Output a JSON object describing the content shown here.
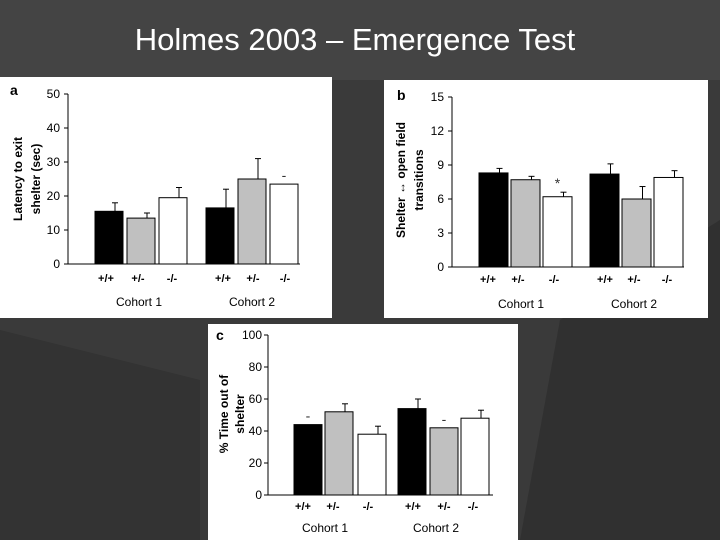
{
  "slide": {
    "title": "Holmes 2003 – Emergence Test"
  },
  "colors": {
    "background": "#3a3a3a",
    "panel": "#ffffff",
    "wt": "#000000",
    "het": "#c0c0c0",
    "ko": "#ffffff"
  },
  "chart_data": [
    {
      "panel_label": "a",
      "type": "bar",
      "ylabel_lines": [
        "Latency to exit",
        "shelter (sec)"
      ],
      "ylim": [
        0,
        50
      ],
      "yticks": [
        0,
        10,
        20,
        30,
        40,
        50
      ],
      "categories": [
        "+/+",
        "+/-",
        "-/-",
        "+/+",
        "+/-",
        "-/-"
      ],
      "groups": [
        "Cohort 1",
        "Cohort 2"
      ],
      "values": [
        15.5,
        13.5,
        19.5,
        16.5,
        25,
        23.5
      ],
      "errors": [
        2.5,
        1.5,
        3,
        5.5,
        6,
        0
      ],
      "annotations": [
        {
          "bar_index": 5,
          "text": "-"
        }
      ]
    },
    {
      "panel_label": "b",
      "type": "bar",
      "ylabel_lines": [
        "Shelter ↔ open field",
        "transitions"
      ],
      "ylim": [
        0,
        15
      ],
      "yticks": [
        0,
        3,
        6,
        9,
        12,
        15
      ],
      "categories": [
        "+/+",
        "+/-",
        "-/-",
        "+/+",
        "+/-",
        "-/-"
      ],
      "groups": [
        "Cohort 1",
        "Cohort 2"
      ],
      "values": [
        8.3,
        7.7,
        6.2,
        8.2,
        6.0,
        7.9
      ],
      "errors": [
        0.4,
        0.3,
        0.4,
        0.9,
        1.1,
        0.6
      ],
      "annotations": [
        {
          "bar_index": 2,
          "text": "*"
        }
      ]
    },
    {
      "panel_label": "c",
      "type": "bar",
      "ylabel_lines": [
        "% Time out of",
        "shelter"
      ],
      "ylim": [
        0,
        100
      ],
      "yticks": [
        0,
        20,
        40,
        60,
        80,
        100
      ],
      "categories": [
        "+/+",
        "+/-",
        "-/-",
        "+/+",
        "+/-",
        "-/-"
      ],
      "groups": [
        "Cohort 1",
        "Cohort 2"
      ],
      "values": [
        44,
        52,
        38,
        54,
        42,
        48
      ],
      "errors": [
        0,
        5,
        5,
        6,
        0,
        5
      ],
      "annotations": [
        {
          "bar_index": 0,
          "text": "-"
        },
        {
          "bar_index": 4,
          "text": "-"
        }
      ]
    }
  ]
}
